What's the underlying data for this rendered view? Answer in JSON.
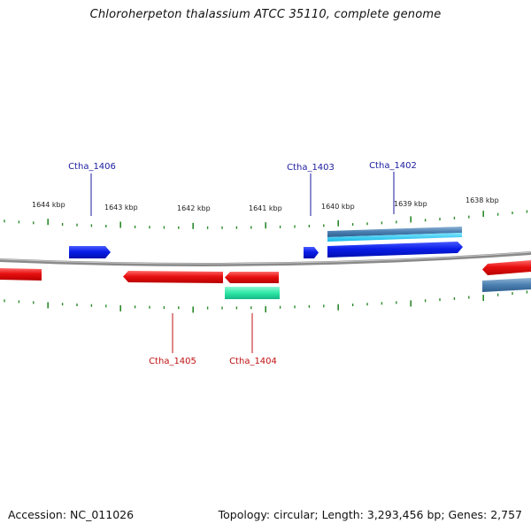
{
  "title": "Chloroherpeton thalassium ATCC 35110, complete genome",
  "footer": {
    "accession": "Accession: NC_011026",
    "summary": "Topology: circular; Length: 3,293,456 bp; Genes: 2,757"
  },
  "colors": {
    "backbone": "#8a8a8a",
    "ticks": "#2a8a2a",
    "forward_cds": "#0a1de8",
    "reverse_cds": "#e81010",
    "forward_rna": "#4a7fb0",
    "forward_rna_light": "#22c8f0",
    "reverse_misc": "#2ee8a8",
    "label_forward": "#1a1aa0",
    "label_reverse": "#c01010"
  },
  "scale": {
    "labels": [
      "1644 kbp",
      "1643 kbp",
      "1642 kbp",
      "1641 kbp",
      "1640 kbp",
      "1639 kbp",
      "1638 kbp"
    ]
  },
  "genes": {
    "top": [
      {
        "name": "Ctha_1406"
      },
      {
        "name": "Ctha_1403"
      },
      {
        "name": "Ctha_1402"
      }
    ],
    "bottom": [
      {
        "name": "Ctha_1405"
      },
      {
        "name": "Ctha_1404"
      }
    ]
  }
}
